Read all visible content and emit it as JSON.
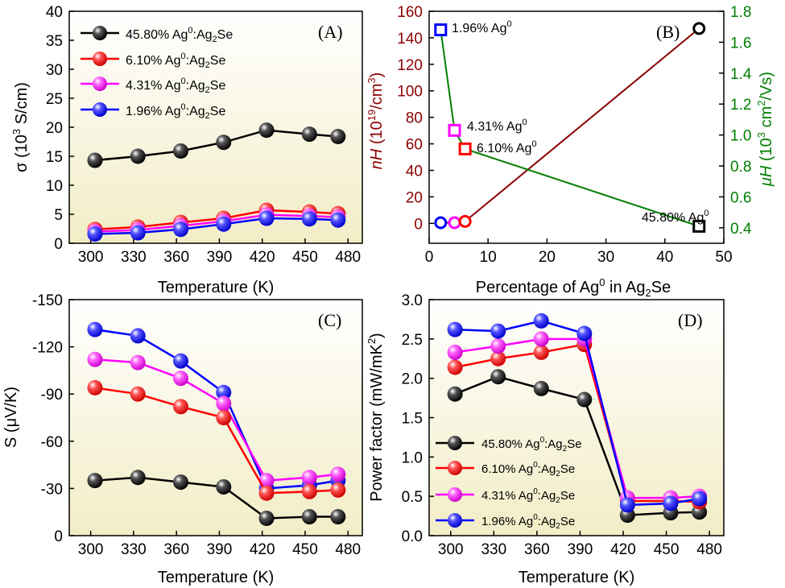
{
  "chart_data": [
    {
      "panel": "(A)",
      "type": "line",
      "x": [
        303,
        333,
        363,
        393,
        423,
        453,
        473
      ],
      "xlabel": "Temperature (K)",
      "ylabel_parts": [
        "σ (10",
        "3",
        " S/cm)"
      ],
      "xlim": [
        285,
        490
      ],
      "ylim": [
        0,
        40
      ],
      "xticks": [
        "300",
        "330",
        "360",
        "390",
        "420",
        "450",
        "480"
      ],
      "yticks": [
        "0",
        "5",
        "10",
        "15",
        "20",
        "25",
        "30",
        "35",
        "40"
      ],
      "legend_position": "top-left",
      "series": [
        {
          "legend": [
            "45.80% Ag",
            "0",
            ":Ag",
            "2",
            "Se"
          ],
          "color": "#000000",
          "values": [
            14.3,
            15.0,
            15.9,
            17.4,
            19.5,
            18.8,
            18.4
          ]
        },
        {
          "legend": [
            "6.10% Ag",
            "0",
            ":Ag",
            "2",
            "Se"
          ],
          "color": "#ff0000",
          "values": [
            2.4,
            2.8,
            3.6,
            4.3,
            5.7,
            5.4,
            5.1
          ]
        },
        {
          "legend": [
            "4.31% Ag",
            "0",
            ":Ag",
            "2",
            "Se"
          ],
          "color": "#ff00ff",
          "values": [
            2.0,
            2.3,
            3.0,
            3.8,
            4.9,
            4.7,
            4.5
          ]
        },
        {
          "legend": [
            "1.96% Ag",
            "0",
            ":Ag",
            "2",
            "Se"
          ],
          "color": "#0000ff",
          "values": [
            1.6,
            1.8,
            2.4,
            3.3,
            4.3,
            4.2,
            4.0
          ]
        }
      ]
    },
    {
      "panel": "(B)",
      "type": "line",
      "x": [
        1.96,
        4.31,
        6.1,
        45.8
      ],
      "xlabel_parts": [
        "Percentage of Ag",
        "0",
        " in Ag",
        "2",
        "Se"
      ],
      "ylabel_left_parts": [
        "nH",
        " (10",
        "19",
        "/cm",
        "3",
        ")"
      ],
      "ylabel_right_parts": [
        "μH",
        " (10",
        "3",
        " cm",
        "2",
        "/Vs)"
      ],
      "xlim": [
        0,
        50
      ],
      "ylim_left": [
        -15,
        160
      ],
      "ylim_right": [
        0.3,
        1.8
      ],
      "xticks": [
        "0",
        "10",
        "20",
        "30",
        "40",
        "50"
      ],
      "yticks_left": [
        "0",
        "20",
        "40",
        "60",
        "80",
        "100",
        "120",
        "140",
        "160"
      ],
      "yticks_right": [
        "0.4",
        "0.6",
        "0.8",
        "1.0",
        "1.2",
        "1.4",
        "1.6",
        "1.8"
      ],
      "series": [
        {
          "axis": "left",
          "color": "#8b0000",
          "values": [
            0.5,
            0.5,
            1.5,
            147
          ],
          "marker_colors": [
            "#0000ff",
            "#ff00ff",
            "#ff0000",
            "#000000"
          ]
        },
        {
          "axis": "right",
          "color": "#008000",
          "values": [
            1.68,
            1.03,
            0.91,
            0.41
          ],
          "marker_colors": [
            "#0000ff",
            "#ff00ff",
            "#ff0000",
            "#000000"
          ]
        }
      ],
      "annotations": [
        {
          "parts": [
            "1.96% Ag",
            "0"
          ]
        },
        {
          "parts": [
            "4.31% Ag",
            "0"
          ]
        },
        {
          "parts": [
            "6.10% Ag",
            "0"
          ]
        },
        {
          "parts": [
            "45.80% Ag",
            "0"
          ]
        }
      ]
    },
    {
      "panel": "(C)",
      "type": "line",
      "x": [
        303,
        333,
        363,
        393,
        423,
        453,
        473
      ],
      "xlabel": "Temperature (K)",
      "ylabel": "S (μV/K)",
      "xlim": [
        285,
        490
      ],
      "ylim": [
        0,
        -150
      ],
      "inverted_y": true,
      "xticks": [
        "300",
        "330",
        "360",
        "390",
        "420",
        "450",
        "480"
      ],
      "yticks": [
        "0",
        "-30",
        "-60",
        "-90",
        "-120",
        "-150"
      ],
      "series": [
        {
          "color": "#0000ff",
          "values": [
            -131,
            -127,
            -111,
            -91,
            -30,
            -32,
            -35
          ]
        },
        {
          "color": "#ff00ff",
          "values": [
            -112,
            -110,
            -100,
            -84,
            -35,
            -37,
            -39
          ]
        },
        {
          "color": "#ff0000",
          "values": [
            -94,
            -90,
            -82,
            -75,
            -27,
            -28,
            -29
          ]
        },
        {
          "color": "#000000",
          "values": [
            -35,
            -37,
            -34,
            -31,
            -11,
            -12,
            -12
          ]
        }
      ]
    },
    {
      "panel": "(D)",
      "type": "line",
      "x": [
        303,
        333,
        363,
        393,
        423,
        453,
        473
      ],
      "xlabel": "Temperature (K)",
      "ylabel_parts": [
        "Power factor (mW/mK",
        "2",
        ")"
      ],
      "xlim": [
        285,
        490
      ],
      "ylim": [
        0,
        3.0
      ],
      "xticks": [
        "300",
        "330",
        "360",
        "390",
        "420",
        "450",
        "480"
      ],
      "yticks": [
        "0.0",
        "0.5",
        "1.0",
        "1.5",
        "2.0",
        "2.5",
        "3.0"
      ],
      "legend_position": "bottom-left",
      "series": [
        {
          "legend": [
            "45.80% Ag",
            "0",
            ":Ag",
            "2",
            "Se"
          ],
          "color": "#000000",
          "values": [
            1.8,
            2.02,
            1.87,
            1.73,
            0.26,
            0.29,
            0.3
          ]
        },
        {
          "legend": [
            "6.10% Ag",
            "0",
            ":Ag",
            "2",
            "Se"
          ],
          "color": "#ff0000",
          "values": [
            2.14,
            2.25,
            2.33,
            2.43,
            0.44,
            0.44,
            0.43
          ]
        },
        {
          "legend": [
            "4.31% Ag",
            "0",
            ":Ag",
            "2",
            "Se"
          ],
          "color": "#ff00ff",
          "values": [
            2.33,
            2.41,
            2.5,
            2.5,
            0.48,
            0.48,
            0.5
          ]
        },
        {
          "legend": [
            "1.96% Ag",
            "0",
            ":Ag",
            "2",
            "Se"
          ],
          "color": "#0000ff",
          "values": [
            2.62,
            2.6,
            2.73,
            2.57,
            0.39,
            0.41,
            0.47
          ]
        }
      ]
    }
  ]
}
